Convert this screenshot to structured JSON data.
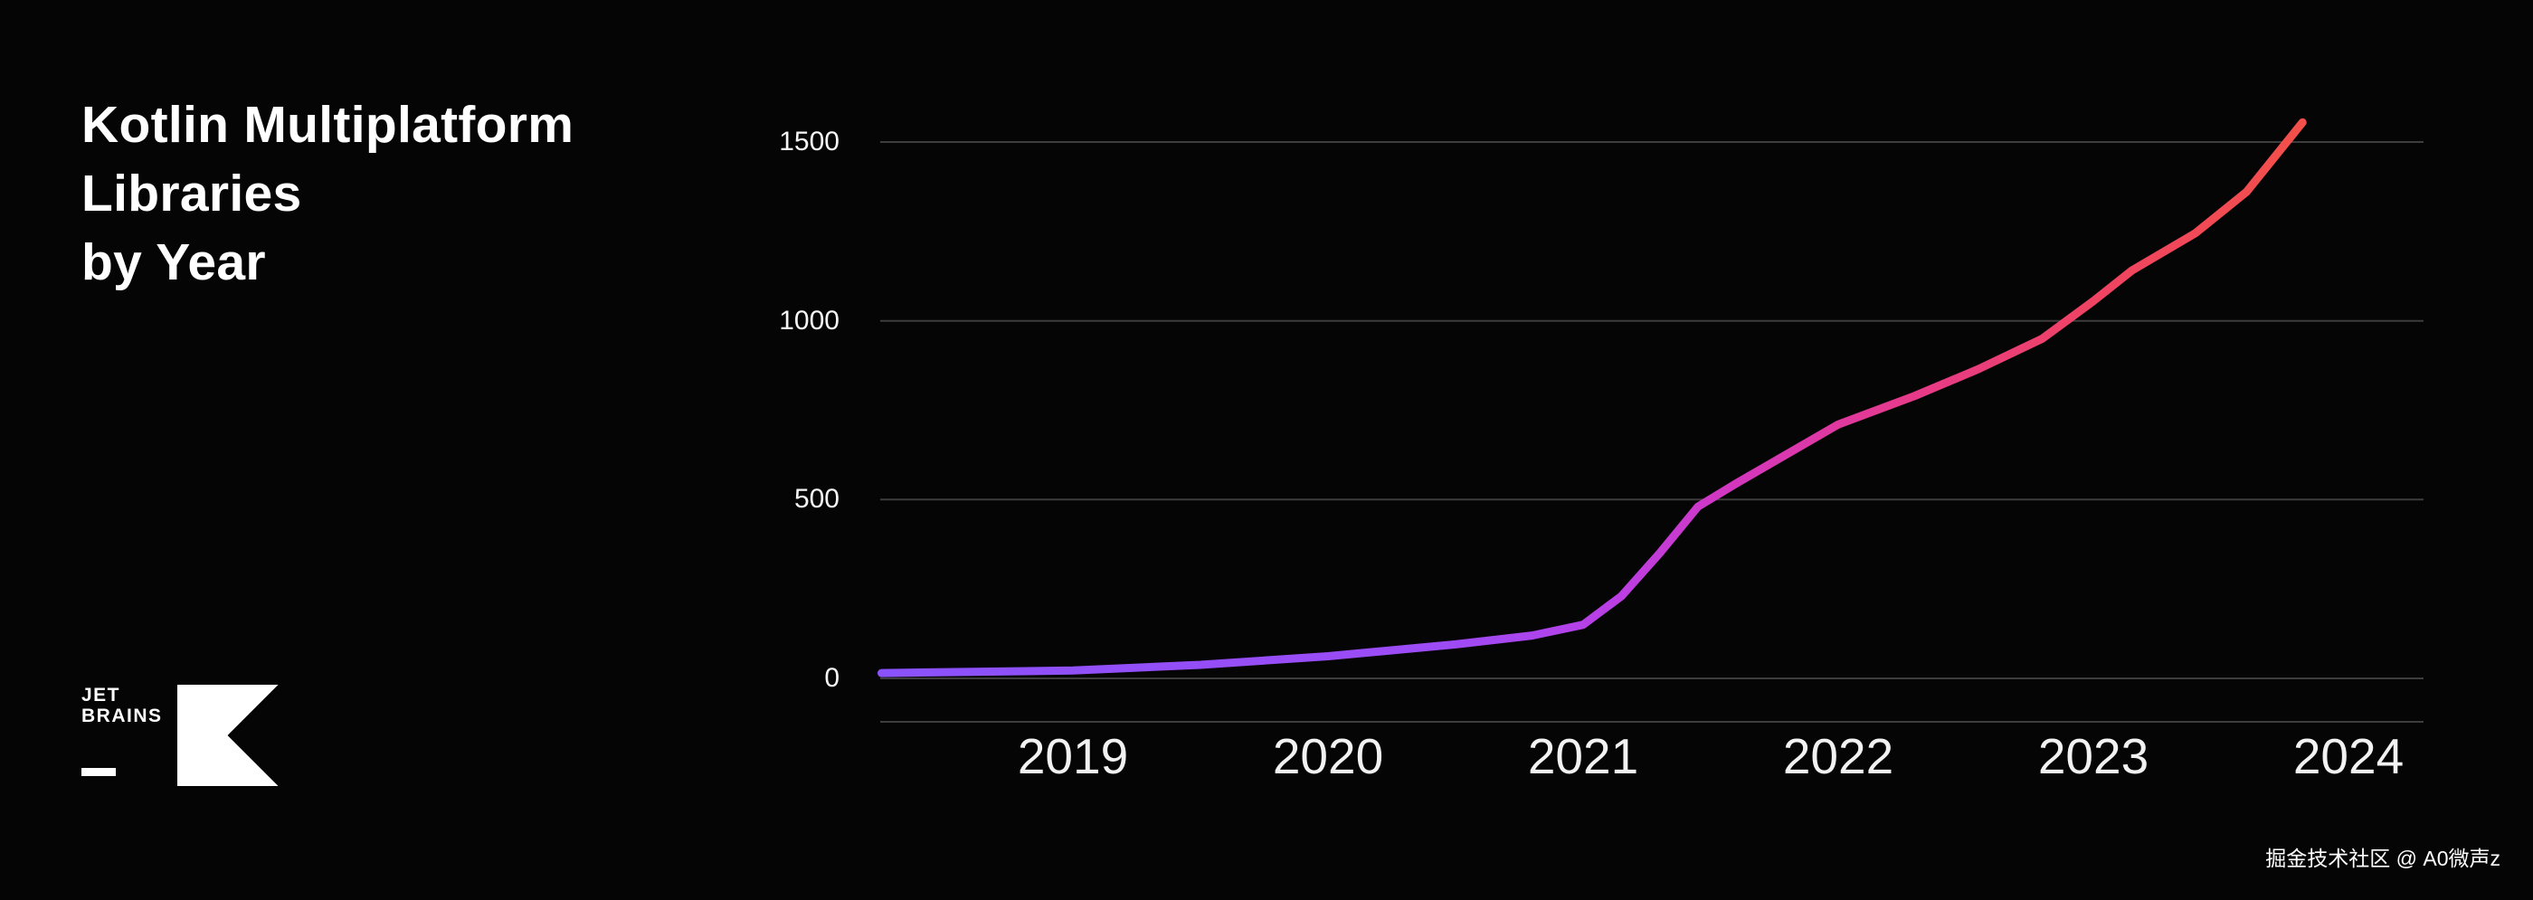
{
  "title": {
    "lines": [
      "Kotlin Multiplatform",
      "Libraries",
      "by Year"
    ]
  },
  "logo": {
    "line1": "JET",
    "line2": "BRAINS"
  },
  "watermark": {
    "text": "掘金技术社区 @ A0微声z"
  },
  "chart_data": {
    "type": "line",
    "title": "Kotlin Multiplatform Libraries by Year",
    "xlabel": "",
    "ylabel": "",
    "x_ticks": [
      2019,
      2020,
      2021,
      2022,
      2023,
      2024
    ],
    "y_ticks": [
      0,
      500,
      1000,
      1500
    ],
    "xlim": [
      2018.25,
      2024.35
    ],
    "ylim": [
      0,
      1600
    ],
    "grid": true,
    "legend": false,
    "series": [
      {
        "name": "Libraries",
        "points": [
          [
            2018.25,
            15
          ],
          [
            2019.0,
            22
          ],
          [
            2019.5,
            38
          ],
          [
            2020.0,
            62
          ],
          [
            2020.5,
            95
          ],
          [
            2020.8,
            120
          ],
          [
            2021.0,
            150
          ],
          [
            2021.15,
            230
          ],
          [
            2021.3,
            350
          ],
          [
            2021.45,
            480
          ],
          [
            2021.6,
            545
          ],
          [
            2022.0,
            710
          ],
          [
            2022.3,
            790
          ],
          [
            2022.55,
            865
          ],
          [
            2022.8,
            950
          ],
          [
            2023.0,
            1055
          ],
          [
            2023.15,
            1140
          ],
          [
            2023.4,
            1245
          ],
          [
            2023.6,
            1360
          ],
          [
            2023.82,
            1555
          ]
        ],
        "gradient_stops": [
          {
            "offset": 0.0,
            "color": "#8A52FA"
          },
          {
            "offset": 0.4,
            "color": "#9D4BF5"
          },
          {
            "offset": 0.52,
            "color": "#BC3EE3"
          },
          {
            "offset": 0.6,
            "color": "#D437BE"
          },
          {
            "offset": 0.72,
            "color": "#E63A8B"
          },
          {
            "offset": 0.85,
            "color": "#EF4363"
          },
          {
            "offset": 1.0,
            "color": "#F2504A"
          }
        ]
      }
    ],
    "colors": {
      "line_start": "#8A52FA",
      "line_end": "#F2504A",
      "grid": "#3d3d3d",
      "text": "#ffffff",
      "background": "#050505"
    }
  }
}
